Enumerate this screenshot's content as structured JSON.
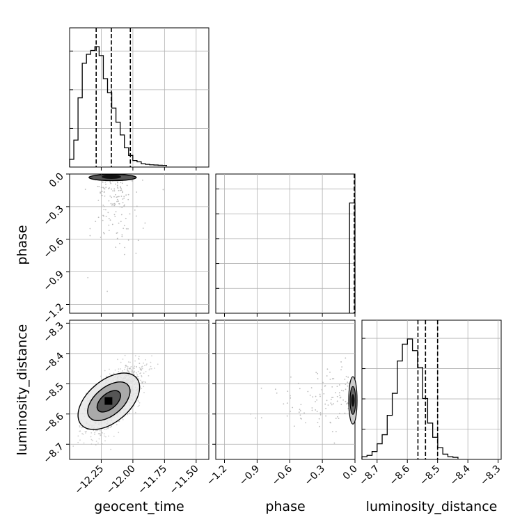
{
  "chart_data": {
    "type": "corner",
    "parameters": [
      "geocent_time",
      "phase",
      "luminosity_distance"
    ],
    "axis_ranges": {
      "geocent_time": [
        -12.5,
        -11.4
      ],
      "phase": [
        -1.28,
        0.0
      ],
      "luminosity_distance": [
        -8.75,
        -8.29
      ]
    },
    "ticks": {
      "geocent_time": [
        "−12.25",
        "−12.00",
        "−11.75",
        "−11.50"
      ],
      "phase": [
        "−1.2",
        "−0.9",
        "−0.6",
        "−0.3",
        "0.0"
      ],
      "luminosity_distance": [
        "−8.7",
        "−8.6",
        "−8.5",
        "−8.4",
        "−8.3"
      ]
    },
    "tick_values": {
      "geocent_time": [
        -12.25,
        -12.0,
        -11.75,
        -11.5
      ],
      "phase": [
        -1.2,
        -0.9,
        -0.6,
        -0.3,
        0.0
      ],
      "luminosity_distance": [
        -8.7,
        -8.6,
        -8.5,
        -8.4,
        -8.3
      ]
    },
    "quantiles": {
      "geocent_time": [
        -12.29,
        -12.17,
        -12.02
      ],
      "phase": [
        0.0
      ],
      "luminosity_distance": [
        -8.565,
        -8.54,
        -8.5
      ]
    },
    "histograms": {
      "geocent_time": {
        "x_start": -12.5,
        "bin_width": 0.0333,
        "counts": [
          0.05,
          0.2,
          0.53,
          0.8,
          0.87,
          0.9,
          0.93,
          0.86,
          0.68,
          0.57,
          0.45,
          0.34,
          0.24,
          0.14,
          0.08,
          0.04,
          0.03,
          0.015,
          0.01,
          0.007,
          0.005,
          0.003,
          0.002
        ]
      },
      "phase": {
        "bins": [
          [
            -0.05,
            0.0
          ]
        ],
        "counts": [
          0.88
        ]
      },
      "luminosity_distance": {
        "x_start": -8.75,
        "bin_width": 0.0167,
        "counts": [
          0.01,
          0.02,
          0.05,
          0.11,
          0.18,
          0.33,
          0.5,
          0.75,
          0.88,
          0.92,
          0.83,
          0.7,
          0.46,
          0.27,
          0.16,
          0.08,
          0.03,
          0.01,
          0.005
        ]
      }
    },
    "grid": true
  }
}
